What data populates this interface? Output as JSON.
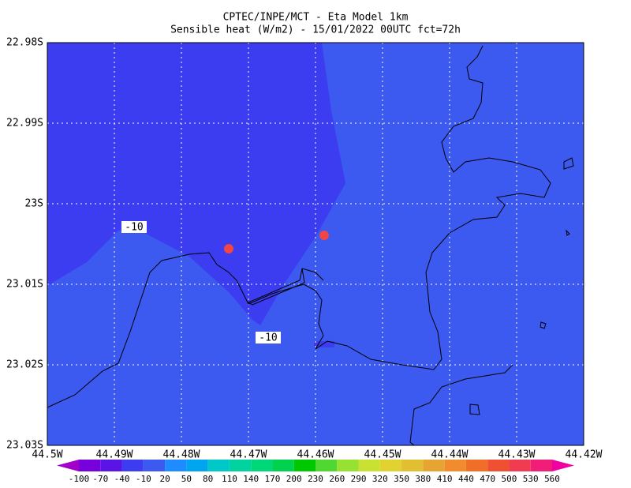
{
  "chart_data": {
    "type": "map",
    "title": "CPTEC/INPE/MCT -  Eta Model 1km",
    "subtitle": "Sensible heat (W/m2) - 15/01/2022 00UTC fct=72h",
    "xlim": [
      -44.5,
      -44.42
    ],
    "xticks": [
      {
        "value": -44.5,
        "label": "44.5W"
      },
      {
        "value": -44.49,
        "label": "44.49W"
      },
      {
        "value": -44.48,
        "label": "44.48W"
      },
      {
        "value": -44.47,
        "label": "44.47W"
      },
      {
        "value": -44.46,
        "label": "44.46W"
      },
      {
        "value": -44.45,
        "label": "44.45W"
      },
      {
        "value": -44.44,
        "label": "44.44W"
      },
      {
        "value": -44.43,
        "label": "44.43W"
      },
      {
        "value": -44.42,
        "label": "44.42W"
      }
    ],
    "ylim": [
      -23.03,
      -22.98
    ],
    "yticks": [
      {
        "value": -22.98,
        "label": "22.98S"
      },
      {
        "value": -22.99,
        "label": "22.99S"
      },
      {
        "value": -23.0,
        "label": "23S"
      },
      {
        "value": -23.01,
        "label": "23.01S"
      },
      {
        "value": -23.02,
        "label": "23.02S"
      },
      {
        "value": -23.03,
        "label": "23.03S"
      }
    ],
    "grid": true,
    "contour_labels": [
      "-10",
      "-10"
    ],
    "colorbar": {
      "levels": [
        -100,
        -70,
        -40,
        -10,
        20,
        50,
        80,
        110,
        140,
        170,
        200,
        230,
        260,
        290,
        320,
        350,
        380,
        410,
        440,
        470,
        500,
        530,
        560
      ],
      "colors": [
        "#a000c8",
        "#7800dc",
        "#5a14e6",
        "#3c3cf0",
        "#3c5af0",
        "#1e8cff",
        "#00a5f0",
        "#00c8c8",
        "#00d2a0",
        "#00d778",
        "#00d250",
        "#00c800",
        "#50d732",
        "#96e132",
        "#c8e132",
        "#e1d232",
        "#e1be32",
        "#e6a532",
        "#f08c2d",
        "#f06e28",
        "#f05032",
        "#f03c50",
        "#f01e78",
        "#f000a0"
      ]
    }
  }
}
